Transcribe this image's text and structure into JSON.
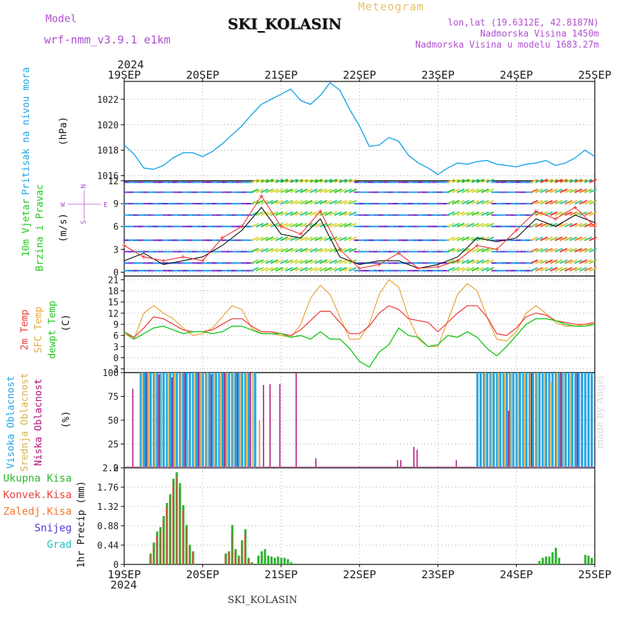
{
  "header": {
    "model_label": "Model",
    "model_name": "wrf-nmm_v3.9.1  e1km",
    "station": "SKI_KOLASIN",
    "meteogram": "Meteogram",
    "lonlat": "lon,lat (19.6312E, 42.8187N)",
    "elevation": "Nadmorska Visina 1450m",
    "elevation_model": "Nadmorska Visina u modelu 1683.27m",
    "year_top": "2024",
    "year_bottom": "2024",
    "footer_station": "SKI_KOLASIN",
    "credit": "made by Angel"
  },
  "colors": {
    "pressure": "#1fa6e8",
    "temp2m": "#ee3a3a",
    "sfc_temp": "#e8a640",
    "dewpt": "#22c822",
    "high_cloud": "#1fa6e8",
    "mid_cloud": "#d8b050",
    "low_cloud": "#b0107a",
    "total_precip": "#2fb52f",
    "convective": "#e84040",
    "frozen": "#f07a30",
    "snow": "#4a3ad8",
    "graupel": "#28c0c0",
    "labels_purple": "#b050d0"
  },
  "chart_data": [
    {
      "type": "line",
      "panel": "pressure",
      "labels": [
        "Pritisak na nivou mora",
        "(hPa)"
      ],
      "x_ticks": [
        "19SEP",
        "20SEP",
        "21SEP",
        "22SEP",
        "23SEP",
        "24SEP",
        "25SEP"
      ],
      "x_range": [
        0,
        144
      ],
      "ylim": [
        1015.6,
        1023.4
      ],
      "y_ticks": [
        1016,
        1018,
        1020,
        1022
      ],
      "grid": true,
      "series": [
        {
          "name": "Pritisak na nivou mora",
          "x": [
            0,
            3,
            6,
            9,
            12,
            15,
            18,
            21,
            24,
            27,
            30,
            33,
            36,
            39,
            42,
            45,
            48,
            51,
            54,
            57,
            60,
            63,
            66,
            69,
            72,
            75,
            78,
            81,
            84,
            87,
            90,
            93,
            96,
            99,
            102,
            105,
            108,
            111,
            114,
            117,
            120,
            123,
            126,
            129,
            132,
            135,
            138,
            141,
            144
          ],
          "values": [
            1018.4,
            1017.7,
            1016.6,
            1016.5,
            1016.8,
            1017.4,
            1017.8,
            1017.8,
            1017.5,
            1017.9,
            1018.5,
            1019.2,
            1019.9,
            1020.8,
            1021.6,
            1022.0,
            1022.4,
            1022.8,
            1021.9,
            1021.6,
            1022.3,
            1023.3,
            1022.7,
            1021.2,
            1019.9,
            1018.3,
            1018.4,
            1019.0,
            1018.7,
            1017.6,
            1017.0,
            1016.6,
            1016.1,
            1016.6,
            1017.0,
            1016.9,
            1017.1,
            1017.2,
            1016.9,
            1016.8,
            1016.7,
            1016.9,
            1017.0,
            1017.2,
            1016.8,
            1017.0,
            1017.4,
            1018.0,
            1017.5
          ]
        }
      ]
    },
    {
      "type": "line",
      "panel": "wind",
      "labels": [
        "10m Vjetar",
        "Brzina i Pravac",
        "(m/s)"
      ],
      "compass": {
        "n": "N",
        "w": "W",
        "e": "E",
        "s": "S"
      },
      "x_range": [
        0,
        144
      ],
      "ylim": [
        -0.5,
        12
      ],
      "y_ticks": [
        0,
        3,
        6,
        9,
        12
      ],
      "grid": true,
      "series": [
        {
          "name": "speed",
          "x": [
            0,
            6,
            12,
            18,
            24,
            30,
            36,
            42,
            48,
            54,
            60,
            66,
            72,
            78,
            84,
            90,
            96,
            102,
            108,
            114,
            120,
            126,
            132,
            138,
            144
          ],
          "values": [
            1.5,
            2.5,
            1.0,
            1.5,
            2.0,
            3.5,
            5.5,
            8.5,
            5.0,
            4.5,
            7.0,
            2.0,
            1.0,
            1.5,
            1.5,
            0.5,
            1.0,
            2.0,
            4.5,
            4.0,
            4.5,
            7.0,
            6.0,
            7.5,
            6.5
          ]
        },
        {
          "name": "gust",
          "x": [
            0,
            6,
            12,
            18,
            24,
            30,
            36,
            42,
            48,
            54,
            60,
            66,
            72,
            78,
            84,
            90,
            96,
            102,
            108,
            114,
            120,
            126,
            132,
            138,
            144
          ],
          "values": [
            3.5,
            2.0,
            1.5,
            2.0,
            1.5,
            4.5,
            6.0,
            10.0,
            6.0,
            5.0,
            8.0,
            3.0,
            0.5,
            1.0,
            2.5,
            0.5,
            0.7,
            1.5,
            3.5,
            3.0,
            5.5,
            8.0,
            7.0,
            8.5,
            6.0
          ]
        }
      ]
    },
    {
      "type": "line",
      "panel": "temperature",
      "labels": [
        "2m Temp",
        "SFC Temp",
        "dewpt Temp",
        "(C)"
      ],
      "x_range": [
        0,
        144
      ],
      "ylim": [
        -4,
        22
      ],
      "y_ticks": [
        -3,
        0,
        3,
        6,
        9,
        12,
        15,
        18,
        21
      ],
      "grid": true,
      "series": [
        {
          "name": "2m Temp",
          "x": [
            0,
            3,
            6,
            9,
            12,
            15,
            18,
            21,
            24,
            27,
            30,
            33,
            36,
            39,
            42,
            45,
            48,
            51,
            54,
            57,
            60,
            63,
            66,
            69,
            72,
            75,
            78,
            81,
            84,
            87,
            90,
            93,
            96,
            99,
            102,
            105,
            108,
            111,
            114,
            117,
            120,
            123,
            126,
            129,
            132,
            135,
            138,
            141,
            144
          ],
          "values": [
            7,
            5.5,
            8,
            11,
            10.5,
            9,
            7.5,
            7,
            7,
            7.5,
            9,
            10.5,
            10.5,
            8.5,
            7,
            7,
            6.5,
            6,
            7.5,
            10,
            12.5,
            12.5,
            9.5,
            6.5,
            6.5,
            8.5,
            12,
            14,
            13,
            10.5,
            10,
            9.5,
            7,
            9.5,
            12,
            14,
            14,
            11,
            6.5,
            6,
            8,
            11,
            12,
            11.5,
            10,
            9.5,
            9,
            9,
            9.5
          ]
        },
        {
          "name": "SFC Temp",
          "x": [
            0,
            3,
            6,
            9,
            12,
            15,
            18,
            21,
            24,
            27,
            30,
            33,
            36,
            39,
            42,
            45,
            48,
            51,
            54,
            57,
            60,
            63,
            66,
            69,
            72,
            75,
            78,
            81,
            84,
            87,
            90,
            93,
            96,
            99,
            102,
            105,
            108,
            111,
            114,
            117,
            120,
            123,
            126,
            129,
            132,
            135,
            138,
            141,
            144
          ],
          "values": [
            6.5,
            5,
            12,
            14,
            12,
            10.5,
            8,
            6,
            6.5,
            8,
            11,
            14,
            13,
            8,
            6.5,
            6.5,
            6,
            5.5,
            9,
            16,
            19.5,
            17,
            11,
            5,
            5,
            9,
            17,
            21,
            19,
            11,
            5,
            3,
            3,
            10,
            17,
            20,
            18,
            11,
            5,
            4.5,
            7,
            12,
            14,
            12,
            9.5,
            8.5,
            8.5,
            9,
            9
          ]
        },
        {
          "name": "dewpt Temp",
          "x": [
            0,
            3,
            6,
            9,
            12,
            15,
            18,
            21,
            24,
            27,
            30,
            33,
            36,
            39,
            42,
            45,
            48,
            51,
            54,
            57,
            60,
            63,
            66,
            69,
            72,
            75,
            78,
            81,
            84,
            87,
            90,
            93,
            96,
            99,
            102,
            105,
            108,
            111,
            114,
            117,
            120,
            123,
            126,
            129,
            132,
            135,
            138,
            141,
            144
          ],
          "values": [
            7,
            5,
            6.5,
            8,
            8.5,
            7.5,
            6.5,
            7,
            7,
            6.5,
            7,
            8.5,
            8.5,
            7.5,
            6.5,
            6.5,
            6.5,
            5.5,
            6,
            5,
            7,
            5,
            5,
            2.5,
            -1,
            -2.5,
            1.5,
            3.5,
            8,
            6,
            5.5,
            3,
            3.5,
            6,
            5.5,
            7,
            5.5,
            2.5,
            0.5,
            3,
            6,
            9,
            10.5,
            10.5,
            10,
            9,
            8.5,
            8.5,
            9
          ]
        }
      ]
    },
    {
      "type": "bar",
      "panel": "cloud",
      "labels": [
        "Visoka Oblacnost",
        "Srednja Oblacnost",
        "Niska Oblacnost",
        "(%)"
      ],
      "x_range": [
        0,
        144
      ],
      "ylim": [
        0,
        100
      ],
      "y_ticks": [
        0,
        25,
        50,
        75,
        100
      ],
      "grid": true,
      "series": [
        {
          "name": "Visoka Oblacnost",
          "x": [
            5,
            6,
            7,
            8,
            9,
            10,
            11,
            12,
            13,
            14,
            15,
            16,
            17,
            18,
            19,
            20,
            21,
            22,
            23,
            24,
            25,
            26,
            27,
            28,
            29,
            30,
            31,
            32,
            33,
            34,
            35,
            36,
            37,
            38,
            40,
            108,
            109,
            110,
            111,
            112,
            113,
            114,
            115,
            116,
            117,
            118,
            119,
            120,
            121,
            122,
            123,
            124,
            125,
            126,
            127,
            128,
            129,
            130,
            131,
            132,
            133,
            134,
            135,
            136,
            137,
            138,
            139,
            140,
            141,
            142,
            143
          ],
          "values": [
            100,
            100,
            100,
            100,
            100,
            100,
            100,
            100,
            100,
            100,
            100,
            100,
            100,
            100,
            100,
            100,
            100,
            100,
            100,
            100,
            100,
            100,
            100,
            100,
            100,
            100,
            100,
            100,
            100,
            100,
            100,
            100,
            100,
            100,
            100,
            100,
            100,
            100,
            100,
            100,
            100,
            100,
            100,
            100,
            100,
            100,
            100,
            100,
            100,
            100,
            100,
            100,
            100,
            100,
            100,
            100,
            100,
            100,
            100,
            100,
            100,
            100,
            100,
            100,
            100,
            100,
            100,
            100,
            100,
            100,
            100
          ]
        },
        {
          "name": "Srednja Oblacnost",
          "x": [
            5,
            7,
            9,
            11,
            13,
            15,
            17,
            19,
            21,
            23,
            25,
            27,
            29,
            31,
            33,
            35,
            37,
            39,
            41,
            110,
            112,
            114,
            116,
            118,
            120,
            122,
            124,
            126,
            128,
            130,
            132,
            134,
            136
          ],
          "values": [
            100,
            100,
            100,
            100,
            100,
            100,
            100,
            30,
            100,
            100,
            100,
            100,
            100,
            100,
            100,
            100,
            100,
            100,
            50,
            100,
            100,
            100,
            100,
            100,
            100,
            100,
            100,
            100,
            100,
            90,
            100,
            100,
            100
          ]
        },
        {
          "name": "Niska Oblacnost",
          "x": [
            2,
            6,
            10,
            14,
            18,
            22,
            26,
            30,
            34,
            38,
            42,
            44,
            47,
            52,
            58,
            83,
            84,
            88,
            89,
            101,
            117,
            124,
            133,
            138
          ],
          "values": [
            83,
            100,
            98,
            95,
            100,
            100,
            98,
            100,
            100,
            100,
            87,
            88,
            88,
            100,
            10,
            8,
            8,
            22,
            19,
            8,
            60,
            100,
            100,
            100
          ]
        }
      ]
    },
    {
      "type": "bar",
      "panel": "precip",
      "labels": [
        "Ukupna Kisa",
        "Konvek.Kisa",
        "Zaledj.Kisa",
        "Snijeg",
        "Grad",
        "1hr Precip",
        "(mm)"
      ],
      "x_ticks": [
        "19SEP",
        "20SEP",
        "21SEP",
        "22SEP",
        "23SEP",
        "24SEP",
        "25SEP"
      ],
      "x_range": [
        0,
        144
      ],
      "ylim": [
        0,
        2.2
      ],
      "y_ticks": [
        0,
        0.44,
        0.88,
        1.32,
        1.76,
        2.2
      ],
      "grid": true,
      "series": [
        {
          "name": "Ukupna Kisa",
          "x": [
            8,
            9,
            10,
            11,
            12,
            13,
            14,
            15,
            16,
            17,
            18,
            19,
            20,
            21,
            31,
            32,
            33,
            34,
            35,
            36,
            37,
            38,
            39,
            41,
            42,
            43,
            44,
            45,
            46,
            47,
            48,
            49,
            50,
            51,
            52,
            127,
            128,
            129,
            130,
            131,
            132,
            133,
            141,
            142,
            143
          ],
          "values": [
            0.25,
            0.5,
            0.75,
            0.85,
            1.1,
            1.4,
            1.6,
            1.95,
            2.1,
            1.85,
            1.35,
            0.9,
            0.45,
            0.3,
            0.25,
            0.3,
            0.9,
            0.35,
            0.2,
            0.55,
            0.8,
            0.15,
            0.05,
            0.2,
            0.3,
            0.35,
            0.2,
            0.18,
            0.15,
            0.18,
            0.15,
            0.15,
            0.12,
            0.05,
            0.02,
            0.08,
            0.15,
            0.18,
            0.18,
            0.28,
            0.38,
            0.15,
            0.22,
            0.2,
            0.15
          ]
        },
        {
          "name": "Konvek.Kisa",
          "x": [
            8,
            9,
            10,
            11,
            12,
            13,
            14,
            15,
            16,
            17,
            18,
            19,
            20,
            21,
            31,
            32,
            33,
            34,
            35,
            36,
            37,
            38,
            39
          ],
          "values": [
            0.2,
            0.42,
            0.65,
            0.75,
            0.98,
            1.3,
            1.5,
            1.85,
            2.0,
            1.75,
            1.25,
            0.85,
            0.4,
            0.28,
            0.22,
            0.28,
            0.7,
            0.3,
            0.15,
            0.45,
            0.7,
            0.12,
            0.04
          ]
        }
      ]
    }
  ]
}
